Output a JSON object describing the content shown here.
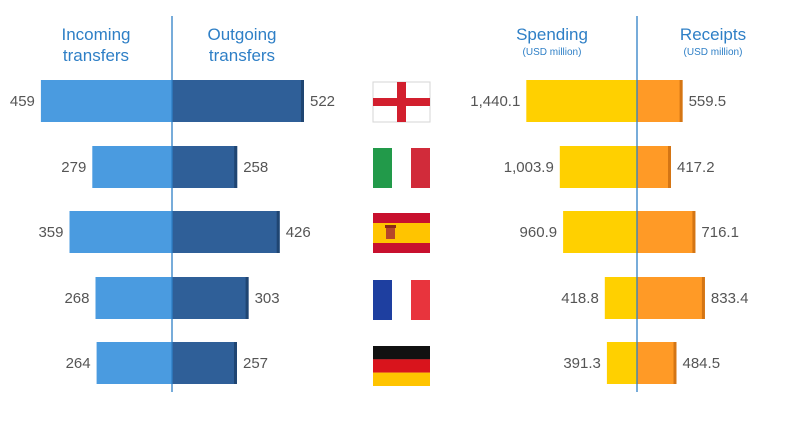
{
  "chart_data": [
    {
      "type": "bar",
      "orientation": "horizontal-diverging",
      "categories": [
        "England",
        "Italy",
        "Spain",
        "France",
        "Germany"
      ],
      "series": [
        {
          "name": "Incoming transfers",
          "values": [
            459,
            279,
            359,
            268,
            264
          ]
        },
        {
          "name": "Outgoing transfers",
          "values": [
            522,
            258,
            426,
            303,
            257
          ]
        }
      ],
      "headers": {
        "left": [
          "Incoming",
          "transfers"
        ],
        "right": [
          "Outgoing",
          "transfers"
        ]
      },
      "labels": {
        "left": [
          "459",
          "279",
          "359",
          "268",
          "264"
        ],
        "right": [
          "522",
          "258",
          "426",
          "303",
          "257"
        ]
      },
      "colors": {
        "left": "#4a9be0",
        "right": "#2f5f98"
      }
    },
    {
      "type": "bar",
      "orientation": "horizontal-diverging",
      "categories": [
        "England",
        "Italy",
        "Spain",
        "France",
        "Germany"
      ],
      "series": [
        {
          "name": "Spending",
          "unit": "USD million",
          "values": [
            1440.1,
            1003.9,
            960.9,
            418.8,
            391.3
          ]
        },
        {
          "name": "Receipts",
          "unit": "USD million",
          "values": [
            559.5,
            417.2,
            716.1,
            833.4,
            484.5
          ]
        }
      ],
      "headers": {
        "left": "Spending",
        "left_sub": "(USD million)",
        "right": "Receipts",
        "right_sub": "(USD million)"
      },
      "labels": {
        "left": [
          "1,440.1",
          "1,003.9",
          "960.9",
          "418.8",
          "391.3"
        ],
        "right": [
          "559.5",
          "417.2",
          "716.1",
          "833.4",
          "484.5"
        ]
      },
      "colors": {
        "left": "#ffd000",
        "right": "#ff9a26"
      }
    }
  ],
  "flags": [
    "england-flag-icon",
    "italy-flag-icon",
    "spain-flag-icon",
    "france-flag-icon",
    "germany-flag-icon"
  ]
}
